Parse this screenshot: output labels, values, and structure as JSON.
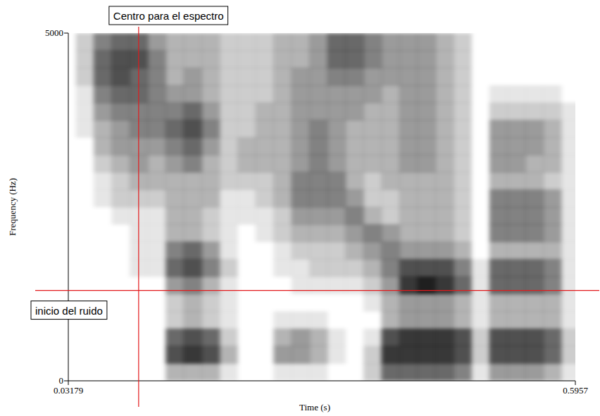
{
  "chart_data": {
    "type": "spectrogram",
    "xlabel": "Time (s)",
    "ylabel": "Frequency (Hz)",
    "xlim": [
      0.03179,
      0.5957
    ],
    "ylim": [
      0,
      5000
    ],
    "xticks": [
      0.03179,
      0.5957
    ],
    "yticks": [
      0,
      5000
    ],
    "time_edges": [
      0.04,
      0.06,
      0.08,
      0.1,
      0.12,
      0.14,
      0.16,
      0.18,
      0.2,
      0.22,
      0.24,
      0.26,
      0.28,
      0.3,
      0.32,
      0.34,
      0.36,
      0.38,
      0.4,
      0.42,
      0.44,
      0.46,
      0.48,
      0.5,
      0.52,
      0.54,
      0.56,
      0.58,
      0.6
    ],
    "frequency_edges": [
      0,
      250,
      500,
      750,
      1000,
      1250,
      1500,
      1750,
      2000,
      2250,
      2500,
      2750,
      3000,
      3250,
      3500,
      3750,
      4000,
      4250,
      4500,
      4750,
      5000
    ],
    "cells": [
      [
        0,
        0,
        0,
        0,
        0,
        3,
        3,
        3,
        1,
        0,
        0,
        1,
        1,
        1,
        0,
        0,
        2,
        6,
        6,
        6,
        6,
        5,
        1,
        4,
        4,
        4,
        3,
        1
      ],
      [
        0,
        0,
        0,
        0,
        0,
        7,
        8,
        7,
        3,
        0,
        0,
        4,
        4,
        3,
        1,
        0,
        2,
        8,
        8,
        8,
        8,
        7,
        2,
        7,
        7,
        7,
        6,
        2
      ],
      [
        0,
        0,
        0,
        0,
        0,
        6,
        7,
        6,
        2,
        0,
        0,
        3,
        4,
        3,
        1,
        0,
        1,
        7,
        8,
        8,
        8,
        7,
        2,
        7,
        7,
        7,
        6,
        2
      ],
      [
        0,
        0,
        0,
        0,
        0,
        2,
        3,
        2,
        1,
        0,
        0,
        1,
        1,
        1,
        0,
        0,
        0,
        3,
        4,
        4,
        4,
        3,
        1,
        3,
        3,
        3,
        3,
        1
      ],
      [
        0,
        0,
        0,
        0,
        0,
        2,
        3,
        2,
        1,
        0,
        0,
        0,
        0,
        0,
        0,
        0,
        1,
        3,
        4,
        4,
        4,
        3,
        1,
        3,
        3,
        3,
        3,
        1
      ],
      [
        0,
        0,
        0,
        0,
        0,
        4,
        5,
        3,
        1,
        0,
        0,
        0,
        1,
        1,
        1,
        1,
        2,
        4,
        8,
        9,
        8,
        6,
        1,
        6,
        6,
        6,
        5,
        1
      ],
      [
        0,
        0,
        0,
        1,
        1,
        6,
        7,
        5,
        2,
        0,
        0,
        1,
        1,
        2,
        2,
        2,
        3,
        5,
        7,
        7,
        7,
        5,
        1,
        6,
        6,
        6,
        5,
        1
      ],
      [
        0,
        0,
        0,
        1,
        1,
        5,
        6,
        4,
        1,
        0,
        0,
        1,
        2,
        2,
        2,
        3,
        4,
        5,
        4,
        4,
        4,
        3,
        0,
        3,
        3,
        3,
        3,
        1
      ],
      [
        0,
        0,
        0,
        1,
        1,
        3,
        3,
        2,
        1,
        0,
        1,
        2,
        3,
        3,
        3,
        4,
        5,
        4,
        3,
        3,
        3,
        2,
        0,
        5,
        5,
        5,
        4,
        1
      ],
      [
        0,
        0,
        1,
        1,
        1,
        3,
        3,
        2,
        1,
        1,
        1,
        2,
        4,
        4,
        4,
        5,
        3,
        2,
        3,
        3,
        3,
        2,
        0,
        5,
        5,
        5,
        4,
        1
      ],
      [
        0,
        1,
        2,
        2,
        2,
        3,
        3,
        3,
        1,
        1,
        2,
        3,
        5,
        5,
        5,
        4,
        2,
        2,
        3,
        3,
        3,
        2,
        0,
        5,
        5,
        5,
        4,
        1
      ],
      [
        0,
        1,
        2,
        3,
        3,
        3,
        3,
        3,
        2,
        2,
        2,
        3,
        5,
        5,
        5,
        3,
        2,
        3,
        3,
        3,
        3,
        2,
        0,
        3,
        3,
        3,
        2,
        1
      ],
      [
        0,
        2,
        3,
        4,
        3,
        4,
        5,
        3,
        2,
        3,
        3,
        3,
        4,
        5,
        4,
        3,
        3,
        3,
        4,
        4,
        3,
        2,
        0,
        4,
        4,
        3,
        3,
        1
      ],
      [
        0,
        3,
        4,
        4,
        4,
        5,
        6,
        4,
        2,
        3,
        3,
        3,
        4,
        5,
        4,
        3,
        3,
        3,
        4,
        4,
        3,
        2,
        0,
        4,
        4,
        4,
        3,
        1
      ],
      [
        1,
        3,
        4,
        5,
        5,
        6,
        7,
        5,
        2,
        2,
        3,
        3,
        4,
        5,
        4,
        3,
        3,
        3,
        4,
        4,
        3,
        2,
        0,
        4,
        4,
        4,
        3,
        1
      ],
      [
        1,
        4,
        5,
        5,
        5,
        5,
        6,
        4,
        2,
        2,
        3,
        3,
        4,
        4,
        4,
        4,
        3,
        3,
        4,
        4,
        3,
        2,
        0,
        2,
        2,
        2,
        2,
        1
      ],
      [
        1,
        5,
        6,
        6,
        5,
        4,
        4,
        3,
        2,
        2,
        2,
        3,
        4,
        4,
        4,
        4,
        4,
        3,
        4,
        4,
        3,
        2,
        0,
        1,
        1,
        1,
        1,
        0
      ],
      [
        2,
        6,
        7,
        6,
        5,
        3,
        4,
        3,
        2,
        2,
        2,
        3,
        4,
        4,
        5,
        5,
        4,
        4,
        4,
        4,
        3,
        2,
        0,
        0,
        0,
        0,
        0,
        0
      ],
      [
        2,
        6,
        7,
        7,
        5,
        3,
        3,
        3,
        2,
        2,
        2,
        3,
        3,
        4,
        6,
        6,
        5,
        4,
        4,
        4,
        3,
        2,
        0,
        0,
        0,
        0,
        0,
        0
      ],
      [
        2,
        5,
        6,
        6,
        4,
        3,
        3,
        3,
        2,
        2,
        2,
        3,
        3,
        4,
        6,
        6,
        5,
        4,
        4,
        4,
        3,
        2,
        0,
        0,
        0,
        0,
        0,
        0
      ]
    ],
    "annotations": [
      {
        "text": "Centro para el espectro",
        "x": 0.11,
        "color": "#e31a1c"
      },
      {
        "text": "inicio del ruido",
        "y": 1300,
        "color": "#e31a1c"
      }
    ]
  }
}
